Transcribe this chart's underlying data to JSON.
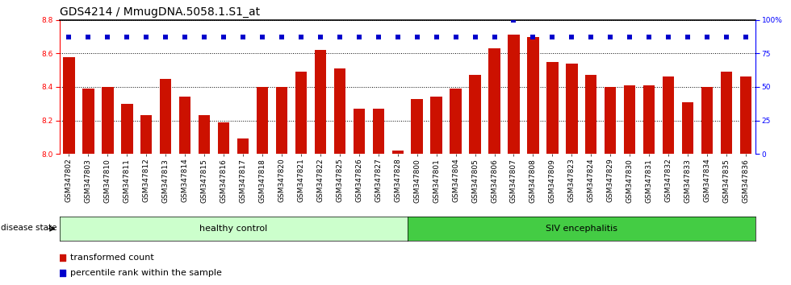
{
  "title": "GDS4214 / MmugDNA.5058.1.S1_at",
  "samples": [
    "GSM347802",
    "GSM347803",
    "GSM347810",
    "GSM347811",
    "GSM347812",
    "GSM347813",
    "GSM347814",
    "GSM347815",
    "GSM347816",
    "GSM347817",
    "GSM347818",
    "GSM347820",
    "GSM347821",
    "GSM347822",
    "GSM347825",
    "GSM347826",
    "GSM347827",
    "GSM347828",
    "GSM347800",
    "GSM347801",
    "GSM347804",
    "GSM347805",
    "GSM347806",
    "GSM347807",
    "GSM347808",
    "GSM347809",
    "GSM347823",
    "GSM347824",
    "GSM347829",
    "GSM347830",
    "GSM347831",
    "GSM347832",
    "GSM347833",
    "GSM347834",
    "GSM347835",
    "GSM347836"
  ],
  "bar_values": [
    8.58,
    8.39,
    8.4,
    8.3,
    8.23,
    8.45,
    8.34,
    8.23,
    8.19,
    8.09,
    8.4,
    8.4,
    8.49,
    8.62,
    8.51,
    8.27,
    8.27,
    8.02,
    8.33,
    8.34,
    8.39,
    8.47,
    8.63,
    8.71,
    8.7,
    8.55,
    8.54,
    8.47,
    8.4,
    8.41,
    8.41,
    8.46,
    8.31,
    8.4,
    8.49,
    8.46
  ],
  "percentile_values": [
    87,
    87,
    87,
    87,
    87,
    87,
    87,
    87,
    87,
    87,
    87,
    87,
    87,
    87,
    87,
    87,
    87,
    87,
    87,
    87,
    87,
    87,
    87,
    100,
    87,
    87,
    87,
    87,
    87,
    87,
    87,
    87,
    87,
    87,
    87,
    87
  ],
  "healthy_count": 18,
  "ylim_left": [
    8.0,
    8.8
  ],
  "ylim_right": [
    0,
    100
  ],
  "yticks_left": [
    8.0,
    8.2,
    8.4,
    8.6,
    8.8
  ],
  "yticks_right": [
    0,
    25,
    50,
    75,
    100
  ],
  "bar_color": "#cc1100",
  "percentile_color": "#0000cc",
  "healthy_label": "healthy control",
  "siv_label": "SIV encephalitis",
  "healthy_bg": "#ccffcc",
  "siv_bg": "#44cc44",
  "disease_state_label": "disease state",
  "legend_bar_label": "transformed count",
  "legend_dot_label": "percentile rank within the sample",
  "title_fontsize": 10,
  "tick_fontsize": 6.5,
  "label_fontsize": 8
}
